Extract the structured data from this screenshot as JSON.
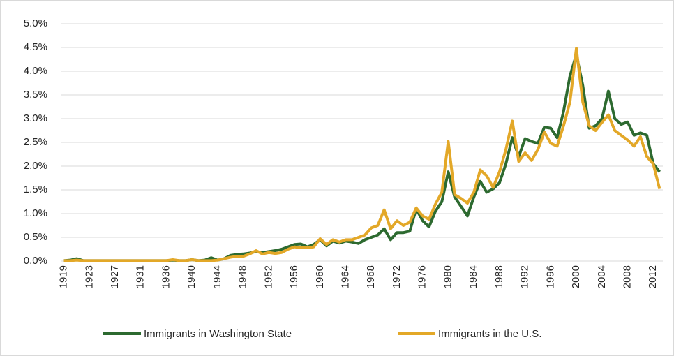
{
  "chart_data": {
    "type": "line",
    "categories": [
      "1919",
      null,
      null,
      null,
      "1923",
      null,
      null,
      null,
      "1927",
      null,
      null,
      null,
      "1931",
      null,
      null,
      null,
      "1936",
      null,
      null,
      null,
      "1940",
      null,
      null,
      null,
      "1944",
      null,
      null,
      null,
      "1948",
      null,
      null,
      null,
      "1952",
      null,
      null,
      null,
      "1956",
      null,
      null,
      null,
      "1960",
      null,
      null,
      null,
      "1964",
      null,
      null,
      null,
      "1968",
      null,
      null,
      null,
      "1972",
      null,
      null,
      null,
      "1976",
      null,
      null,
      null,
      "1980",
      null,
      null,
      null,
      "1984",
      null,
      null,
      null,
      "1988",
      null,
      null,
      null,
      "1992",
      null,
      null,
      null,
      "1996",
      null,
      null,
      null,
      "2000",
      null,
      null,
      null,
      "2004",
      null,
      null,
      null,
      "2008",
      null,
      null,
      null,
      "2012",
      null
    ],
    "series": [
      {
        "name": "Immigrants in Washington State",
        "color": "#2d6a30",
        "values": [
          0.01,
          0.02,
          0.05,
          0.01,
          0.01,
          0.01,
          0.01,
          0.01,
          0.01,
          0.01,
          0.01,
          0.01,
          0.01,
          0.01,
          0.01,
          0.01,
          0.01,
          0.02,
          0.01,
          0.01,
          0.03,
          0.01,
          0.02,
          0.07,
          0.02,
          0.05,
          0.12,
          0.14,
          0.15,
          0.17,
          0.2,
          0.18,
          0.2,
          0.22,
          0.25,
          0.3,
          0.35,
          0.36,
          0.3,
          0.35,
          0.45,
          0.32,
          0.42,
          0.38,
          0.42,
          0.4,
          0.37,
          0.45,
          0.5,
          0.55,
          0.68,
          0.45,
          0.6,
          0.6,
          0.63,
          1.1,
          0.85,
          0.72,
          1.05,
          1.25,
          1.88,
          1.35,
          1.15,
          0.95,
          1.35,
          1.68,
          1.45,
          1.52,
          1.65,
          2.05,
          2.6,
          2.2,
          2.58,
          2.52,
          2.48,
          2.82,
          2.8,
          2.6,
          3.15,
          3.9,
          4.35,
          3.7,
          2.8,
          2.85,
          3.0,
          3.58,
          3.0,
          2.88,
          2.93,
          2.65,
          2.7,
          2.65,
          2.05,
          1.88
        ]
      },
      {
        "name": "Immigrants in the U.S.",
        "color": "#e3a828",
        "values": [
          0.01,
          0.01,
          0.02,
          0.01,
          0.01,
          0.01,
          0.01,
          0.01,
          0.01,
          0.01,
          0.01,
          0.01,
          0.01,
          0.01,
          0.01,
          0.01,
          0.01,
          0.03,
          0.01,
          0.01,
          0.03,
          0.01,
          0.01,
          0.01,
          0.02,
          0.05,
          0.08,
          0.1,
          0.1,
          0.15,
          0.22,
          0.15,
          0.18,
          0.16,
          0.18,
          0.25,
          0.3,
          0.28,
          0.28,
          0.3,
          0.47,
          0.35,
          0.45,
          0.4,
          0.45,
          0.45,
          0.5,
          0.55,
          0.7,
          0.75,
          1.08,
          0.68,
          0.85,
          0.75,
          0.82,
          1.12,
          0.95,
          0.88,
          1.2,
          1.45,
          2.52,
          1.4,
          1.32,
          1.22,
          1.45,
          1.92,
          1.8,
          1.55,
          1.88,
          2.35,
          2.95,
          2.1,
          2.28,
          2.12,
          2.35,
          2.72,
          2.48,
          2.42,
          2.85,
          3.35,
          4.48,
          3.35,
          2.85,
          2.75,
          2.92,
          3.08,
          2.75,
          2.65,
          2.55,
          2.42,
          2.62,
          2.2,
          2.05,
          1.52
        ]
      }
    ],
    "ylim": [
      0,
      5
    ],
    "yticks": [
      {
        "value": 0,
        "label": "0.0%"
      },
      {
        "value": 0.5,
        "label": "0.5%"
      },
      {
        "value": 1,
        "label": "1.0%"
      },
      {
        "value": 1.5,
        "label": "1.5%"
      },
      {
        "value": 2,
        "label": "2.0%"
      },
      {
        "value": 2.5,
        "label": "2.5%"
      },
      {
        "value": 3,
        "label": "3.0%"
      },
      {
        "value": 3.5,
        "label": "3.5%"
      },
      {
        "value": 4,
        "label": "4.0%"
      },
      {
        "value": 4.5,
        "label": "4.5%"
      },
      {
        "value": 5,
        "label": "5.0%"
      }
    ],
    "grid": true,
    "legend": "bottom"
  }
}
